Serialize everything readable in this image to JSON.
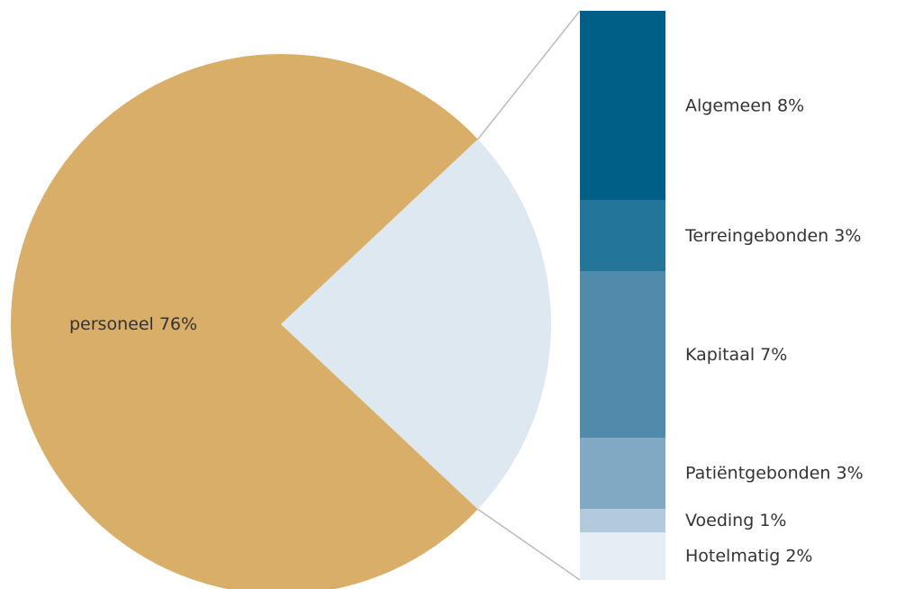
{
  "chart_data": {
    "type": "bar-of-pie",
    "categories": [
      "personeel",
      null
    ],
    "values": [
      76,
      24
    ],
    "value_labels": [
      "76%",
      null
    ],
    "colors": [
      "#d8ae69",
      "#dde8f1"
    ],
    "breakout": {
      "categories": [
        "Algemeen",
        "Terreingebonden",
        "Kapitaal",
        "Patiëntgebonden",
        "Voeding",
        "Hotelmatig"
      ],
      "values": [
        8,
        3,
        7,
        3,
        1,
        2
      ],
      "value_labels": [
        "8%",
        "3%",
        "7%",
        "3%",
        "1%",
        "2%"
      ],
      "colors": [
        "#005f86",
        "#237699",
        "#528aac",
        "#81a9c4",
        "#b3c9dc",
        "#e6eef5"
      ]
    }
  }
}
